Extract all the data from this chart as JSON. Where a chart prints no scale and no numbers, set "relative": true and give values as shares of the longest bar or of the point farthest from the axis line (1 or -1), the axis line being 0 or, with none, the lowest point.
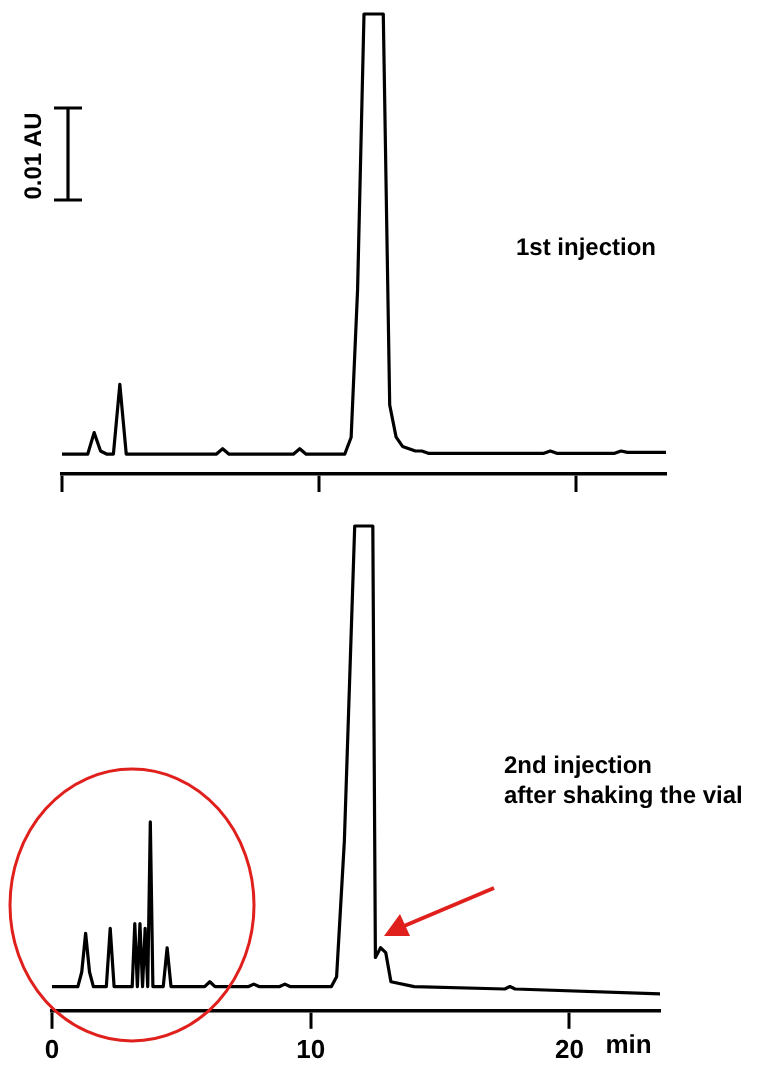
{
  "chart_data": [
    {
      "type": "line",
      "relative": true,
      "color": "#000000",
      "marker": "none",
      "tick_labels": false,
      "annotations": [
        "0.01 AU",
        "1st injection"
      ],
      "categories": [
        null,
        null,
        null,
        null,
        null,
        null,
        null,
        null,
        null,
        null,
        null,
        null,
        null,
        null,
        null,
        null,
        null,
        null,
        null,
        null,
        null,
        null,
        null,
        null,
        null,
        null,
        null,
        null,
        null,
        null,
        null,
        null,
        null,
        null,
        null,
        null,
        null,
        null,
        null,
        null,
        null,
        null,
        null,
        null,
        null,
        null,
        null,
        null,
        null,
        null,
        null,
        null,
        null,
        null,
        null,
        null,
        null,
        null,
        null,
        null,
        null,
        null,
        null,
        null,
        null,
        null,
        null,
        null,
        null,
        null,
        null,
        null,
        null,
        null,
        null,
        null,
        null,
        null,
        null,
        null,
        null,
        null,
        null,
        null,
        null,
        null,
        null,
        null,
        null,
        null,
        null,
        null,
        null,
        null,
        null
      ],
      "values": [
        0.043,
        0.043,
        0.043,
        0.043,
        0.043,
        0.09,
        0.05,
        0.043,
        0.043,
        0.195,
        0.043,
        0.043,
        0.043,
        0.043,
        0.043,
        0.043,
        0.043,
        0.043,
        0.043,
        0.043,
        0.043,
        0.043,
        0.043,
        0.043,
        0.043,
        0.055,
        0.043,
        0.043,
        0.043,
        0.043,
        0.043,
        0.043,
        0.043,
        0.043,
        0.043,
        0.043,
        0.043,
        0.055,
        0.043,
        0.043,
        0.043,
        0.043,
        0.043,
        0.043,
        0.043,
        0.08,
        0.4,
        1,
        1,
        1,
        1,
        0.15,
        0.08,
        0.06,
        0.055,
        0.05,
        0.05,
        0.045,
        0.045,
        0.045,
        0.045,
        0.045,
        0.045,
        0.045,
        0.045,
        0.045,
        0.045,
        0.045,
        0.045,
        0.045,
        0.045,
        0.045,
        0.045,
        0.045,
        0.045,
        0.045,
        0.05,
        0.045,
        0.045,
        0.045,
        0.045,
        0.045,
        0.045,
        0.045,
        0.045,
        0.045,
        0.045,
        0.05,
        0.047,
        0.047,
        0.047,
        0.047,
        0.047,
        0.047,
        0.047
      ]
    },
    {
      "type": "line",
      "relative": true,
      "color": "#000000",
      "marker": "none",
      "xlim": [
        0,
        23.5
      ],
      "xticks": [
        0,
        10,
        20
      ],
      "xlabel": "min",
      "annotations": [
        "2nd injection\nafter shaking the vial"
      ],
      "x": [
        0,
        1.0,
        1.15,
        1.3,
        1.45,
        1.6,
        2.1,
        2.25,
        2.4,
        2.9,
        3.1,
        3.2,
        3.3,
        3.4,
        3.5,
        3.6,
        3.7,
        3.8,
        3.9,
        4.0,
        4.3,
        4.45,
        4.6,
        4.75,
        5.9,
        6.1,
        6.3,
        7.6,
        7.8,
        8.0,
        8.8,
        9.0,
        9.2,
        10.8,
        11.0,
        11.3,
        11.7,
        12.4,
        12.5,
        12.7,
        12.9,
        13.1,
        14,
        17.5,
        17.7,
        17.9,
        23.5
      ],
      "values": [
        0.05,
        0.05,
        0.08,
        0.16,
        0.08,
        0.05,
        0.05,
        0.17,
        0.05,
        0.05,
        0.05,
        0.18,
        0.05,
        0.18,
        0.05,
        0.17,
        0.05,
        0.39,
        0.05,
        0.05,
        0.05,
        0.13,
        0.05,
        0.05,
        0.05,
        0.06,
        0.05,
        0.05,
        0.055,
        0.05,
        0.05,
        0.055,
        0.05,
        0.05,
        0.07,
        0.35,
        1,
        1,
        0.11,
        0.13,
        0.12,
        0.06,
        0.05,
        0.045,
        0.05,
        0.045,
        0.035
      ]
    }
  ]
}
